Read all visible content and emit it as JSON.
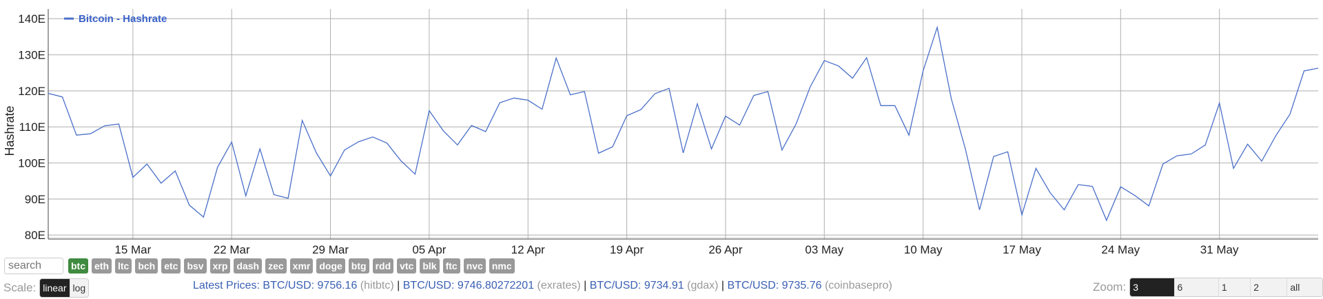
{
  "chart_data": {
    "type": "line",
    "legend": "Bitcoin - Hashrate",
    "legend_position": "top-left",
    "ylabel": "Hashrate",
    "xlabel": "",
    "grid": true,
    "ylim": [
      78.9,
      142.7
    ],
    "yticks": [
      "80E",
      "90E",
      "100E",
      "110E",
      "120E",
      "130E",
      "140E"
    ],
    "ytick_values": [
      80,
      90,
      100,
      110,
      120,
      130,
      140
    ],
    "xticks": [
      "15 Mar",
      "22 Mar",
      "29 Mar",
      "05 Apr",
      "12 Apr",
      "19 Apr",
      "26 Apr",
      "03 May",
      "10 May",
      "17 May",
      "24 May",
      "31 May"
    ],
    "x_start": "09 Mar",
    "x_end": "07 Jun",
    "series": [
      {
        "name": "Bitcoin - Hashrate",
        "color": "#4a6fc9",
        "values": [
          119.3,
          118.3,
          107.7,
          108.1,
          110.3,
          110.8,
          96.0,
          99.7,
          94.4,
          97.8,
          88.3,
          85.0,
          98.8,
          105.8,
          90.9,
          103.9,
          91.2,
          90.2,
          111.8,
          102.8,
          96.4,
          103.6,
          105.9,
          107.2,
          105.5,
          100.6,
          96.9,
          114.5,
          108.9,
          105.0,
          110.4,
          108.7,
          116.7,
          118.0,
          117.4,
          114.9,
          129.1,
          118.9,
          119.8,
          102.7,
          104.5,
          113.1,
          114.8,
          119.2,
          120.7,
          102.8,
          116.4,
          103.9,
          113.0,
          110.5,
          118.7,
          119.8,
          103.6,
          110.8,
          121.1,
          128.4,
          126.9,
          123.5,
          129.2,
          115.9,
          115.9,
          107.7,
          125.5,
          137.6,
          117.8,
          103.8,
          87.0,
          101.8,
          103.1,
          85.6,
          98.5,
          91.8,
          87.0,
          94.0,
          93.5,
          84.1,
          93.4,
          91.0,
          88.1,
          99.7,
          102.0,
          102.5,
          105.0,
          116.6,
          98.5,
          105.2,
          100.5,
          107.6,
          113.5,
          125.5,
          126.3
        ]
      }
    ]
  },
  "controls": {
    "search_placeholder": "search",
    "coins": [
      "btc",
      "eth",
      "ltc",
      "bch",
      "etc",
      "bsv",
      "xrp",
      "dash",
      "zec",
      "xmr",
      "doge",
      "btg",
      "rdd",
      "vtc",
      "blk",
      "ftc",
      "nvc",
      "nmc"
    ],
    "active_coin": "btc",
    "active_coin_color": "#3f8b3f",
    "scale_label": "Scale:",
    "scale_options": [
      "linear",
      "log"
    ],
    "active_scale": "linear",
    "zoom_label": "Zoom:",
    "zoom_options": [
      "3 months",
      "6 months",
      "1 year",
      "2 years",
      "all time"
    ],
    "active_zoom": "3 months"
  },
  "prices": {
    "label": "Latest Prices:",
    "items": [
      {
        "pair": "BTC/USD:",
        "value": "9756.16",
        "exchange": "(hitbtc)"
      },
      {
        "pair": "BTC/USD:",
        "value": "9746.80272201",
        "exchange": "(exrates)"
      },
      {
        "pair": "BTC/USD:",
        "value": "9734.91",
        "exchange": "(gdax)"
      },
      {
        "pair": "BTC/USD:",
        "value": "9735.76",
        "exchange": "(coinbasepro)"
      }
    ],
    "separator": "|"
  }
}
